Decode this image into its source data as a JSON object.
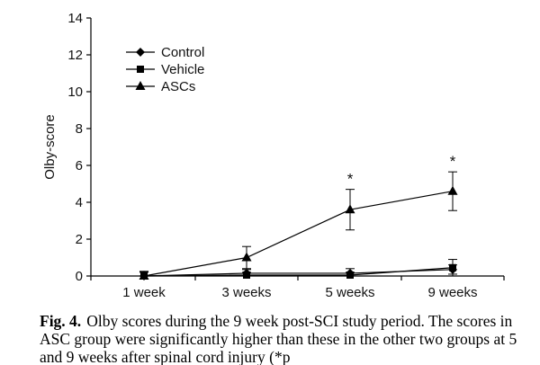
{
  "chart_data": {
    "type": "line",
    "title": "",
    "xlabel": "",
    "ylabel": "Olby-score",
    "categories": [
      "1 week",
      "3 weeks",
      "5 weeks",
      "9 weeks"
    ],
    "ylim": [
      0,
      14
    ],
    "yticks": [
      0,
      2,
      4,
      6,
      8,
      10,
      12,
      14
    ],
    "grid": false,
    "legend_position": "top-left",
    "series": [
      {
        "name": "Control",
        "marker": "diamond",
        "values": [
          0,
          0.15,
          0.15,
          0.35
        ],
        "error": [
          0.25,
          0.2,
          0.25,
          0.25
        ]
      },
      {
        "name": "Vehicle",
        "marker": "square",
        "values": [
          0,
          0.05,
          0.05,
          0.45
        ],
        "error": [
          0.2,
          0.15,
          0.15,
          0.45
        ]
      },
      {
        "name": "ASCs",
        "marker": "triangle",
        "values": [
          0,
          1.0,
          3.6,
          4.6
        ],
        "error": [
          0.25,
          0.6,
          1.1,
          1.05
        ]
      }
    ],
    "annotations": [
      {
        "text": "*",
        "category": "5 weeks"
      },
      {
        "text": "*",
        "category": "9 weeks"
      }
    ]
  },
  "caption": {
    "label": "Fig. 4.",
    "text": "Olby scores during the 9 week post-SCI study period. The scores in ASC group were significantly higher than these in the other two groups at 5 and 9 weeks after spinal cord injury (*p"
  }
}
